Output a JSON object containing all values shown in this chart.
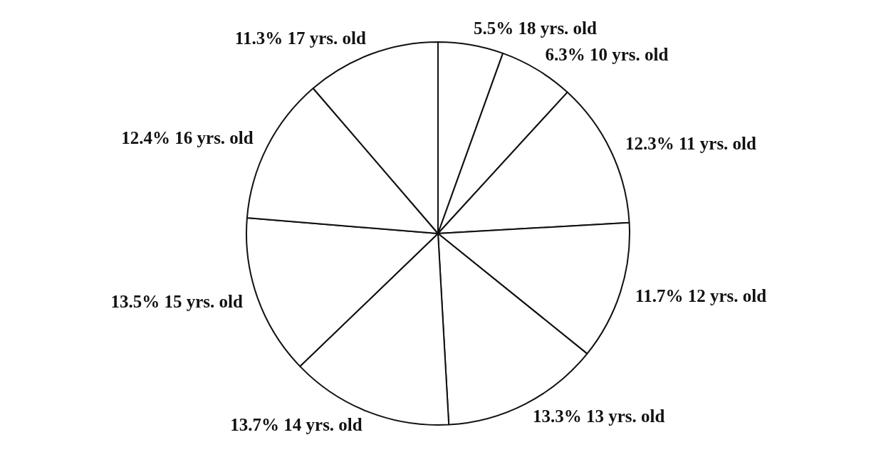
{
  "chart_data": {
    "type": "pie",
    "categories": [
      "18 yrs. old",
      "10 yrs. old",
      "11 yrs. old",
      "12 yrs. old",
      "13 yrs. old",
      "14 yrs. old",
      "15 yrs. old",
      "16 yrs. old",
      "17 yrs. old"
    ],
    "values": [
      5.5,
      6.3,
      12.3,
      11.7,
      13.3,
      13.7,
      13.5,
      12.4,
      11.3
    ],
    "value_labels": [
      "5.5%",
      "6.3%",
      "12.3%",
      "11.7%",
      "13.3%",
      "13.7%",
      "13.5%",
      "12.4%",
      "11.3%"
    ],
    "colors": [
      "#ffffff",
      "#ffffff",
      "#ffffff",
      "#ffffff",
      "#ffffff",
      "#ffffff",
      "#ffffff",
      "#ffffff",
      "#ffffff"
    ],
    "legend": false
  }
}
